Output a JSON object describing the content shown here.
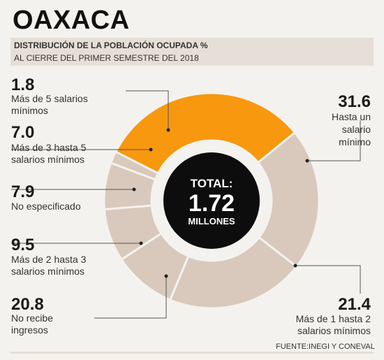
{
  "header": {
    "title": "OAXACA",
    "subtitle_line1": "DISTRIBUCIÓN DE LA POBLACIÓN OCUPADA %",
    "subtitle_line2": "AL CIERRE DEL PRIMER SEMESTRE DEL 2018"
  },
  "center": {
    "line1": "TOTAL:",
    "line2": "1.72",
    "line3": "MILLONES"
  },
  "source": "FUENTE:INEGI Y CONEVAL",
  "colors": {
    "highlight": "#f7980f",
    "muted": "#d8c9bc",
    "center": "#0d0d0d",
    "background": "#f4f2ee"
  },
  "chart_data": {
    "type": "pie",
    "title": "DISTRIBUCIÓN DE LA POBLACIÓN OCUPADA %",
    "subtitle": "AL CIERRE DEL PRIMER SEMESTRE DEL 2018",
    "slices": [
      {
        "label": "Hasta un salario mínimo",
        "value": 31.6,
        "value_text": "31.6",
        "label_lines": [
          "Hasta un",
          "salario",
          "mínimo"
        ]
      },
      {
        "label": "Más de 1 hasta 2 salarios mínimos",
        "value": 21.4,
        "value_text": "21.4",
        "label_lines": [
          "Más de 1 hasta 2",
          "salarios mínimos"
        ]
      },
      {
        "label": "No recibe ingresos",
        "value": 20.8,
        "value_text": "20.8",
        "label_lines": [
          "No recibe",
          "ingresos"
        ]
      },
      {
        "label": "Más de 2 hasta 3 salarios mínimos",
        "value": 9.5,
        "value_text": "9.5",
        "label_lines": [
          "Más de 2 hasta 3",
          "salarios mínimos"
        ]
      },
      {
        "label": "No especificado",
        "value": 7.9,
        "value_text": "7.9",
        "label_lines": [
          "No especificado"
        ]
      },
      {
        "label": "Más de 3 hasta 5 salarios mínimos",
        "value": 7.0,
        "value_text": "7.0",
        "label_lines": [
          "Más de 3 hasta 5",
          "salarios mínimos"
        ]
      },
      {
        "label": "Más de 5 salarios mínimos",
        "value": 1.8,
        "value_text": "1.8",
        "label_lines": [
          "Más de 5 salarios",
          "mínimos"
        ]
      }
    ],
    "highlighted": "Hasta un salario mínimo"
  }
}
